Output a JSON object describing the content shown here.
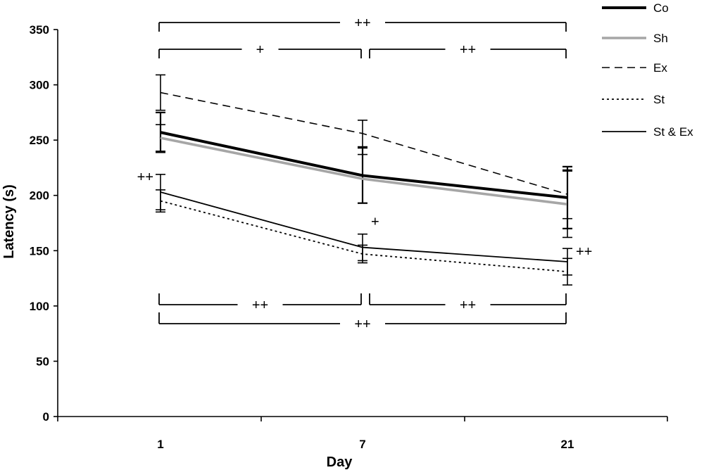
{
  "chart_data": {
    "type": "line",
    "xlabel": "Day",
    "ylabel": "Latency (s)",
    "categories": [
      "1",
      "7",
      "21"
    ],
    "ylim": [
      0,
      350
    ],
    "yticks": [
      0,
      50,
      100,
      150,
      200,
      250,
      300,
      350
    ],
    "grid": false,
    "legend_position": "top-right",
    "series": [
      {
        "name": "Co",
        "values": [
          257,
          218,
          198
        ],
        "error": [
          18,
          25,
          28
        ],
        "color": "#000000",
        "style": "solid-thick"
      },
      {
        "name": "Sh",
        "values": [
          252,
          215,
          192
        ],
        "error": [
          12,
          22,
          30
        ],
        "color": "#a6a6a6",
        "style": "solid-gray"
      },
      {
        "name": "Ex",
        "values": [
          293,
          256,
          201
        ],
        "error": [
          16,
          12,
          22
        ],
        "color": "#000000",
        "style": "dashed"
      },
      {
        "name": "St",
        "values": [
          195,
          147,
          131
        ],
        "error": [
          10,
          8,
          12
        ],
        "color": "#000000",
        "style": "dotted"
      },
      {
        "name": "St & Ex",
        "values": [
          203,
          153,
          140
        ],
        "error": [
          16,
          12,
          12
        ],
        "color": "#000000",
        "style": "solid-thin"
      }
    ],
    "annotations": [
      {
        "label": "++",
        "type": "bracket",
        "from": "1",
        "to": "21",
        "side": "top",
        "row": 1
      },
      {
        "label": "+",
        "type": "bracket",
        "from": "1",
        "to": "7",
        "side": "top",
        "row": 2
      },
      {
        "label": "++",
        "type": "bracket",
        "from": "7",
        "to": "21",
        "side": "top",
        "row": 2
      },
      {
        "label": "++",
        "type": "bracket",
        "from": "1",
        "to": "7",
        "side": "bottom",
        "row": 1
      },
      {
        "label": "++",
        "type": "bracket",
        "from": "7",
        "to": "21",
        "side": "bottom",
        "row": 1
      },
      {
        "label": "++",
        "type": "bracket",
        "from": "1",
        "to": "21",
        "side": "bottom",
        "row": 2
      },
      {
        "label": "++",
        "type": "marker",
        "at": "1",
        "series": "St & Ex",
        "side": "left"
      },
      {
        "label": "+",
        "type": "marker",
        "at": "7",
        "series": "St & Ex",
        "side": "right"
      },
      {
        "label": "++",
        "type": "marker",
        "at": "21",
        "series": "St & Ex",
        "side": "right"
      }
    ]
  }
}
